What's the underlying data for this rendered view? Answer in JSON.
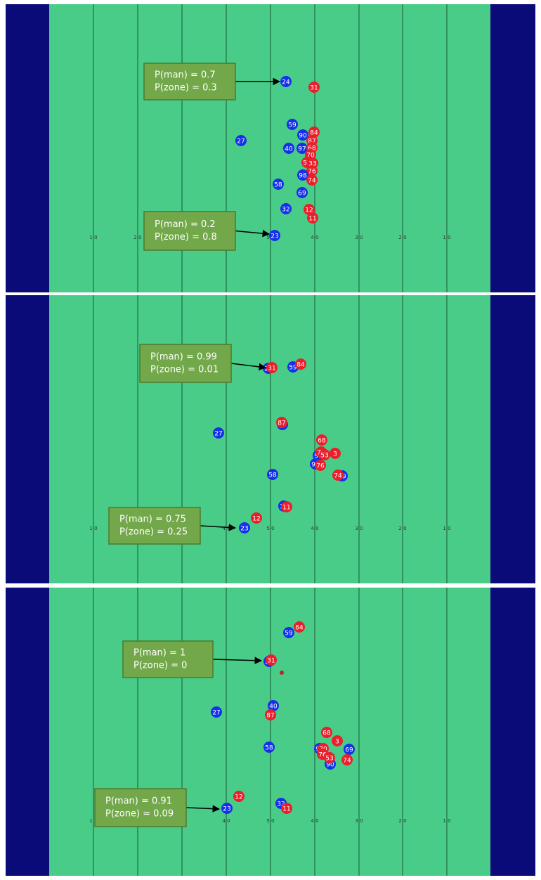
{
  "yard_labels": [
    "1 0",
    "2 0",
    "3 0",
    "4 0",
    "5 0",
    "4 0",
    "3 0",
    "2 0",
    "1 0"
  ],
  "panels": [
    {
      "annotations": [
        {
          "lines": [
            "P(man) = 0.7",
            "P(zone) = 0.3"
          ]
        },
        {
          "lines": [
            "P(man) = 0.2",
            "P(zone) = 0.8"
          ]
        }
      ],
      "players": [
        {
          "label": "24",
          "color": "blue"
        },
        {
          "label": "31",
          "color": "red"
        },
        {
          "label": "59",
          "color": "blue"
        },
        {
          "label": "90",
          "color": "blue"
        },
        {
          "label": "84",
          "color": "red"
        },
        {
          "label": "87",
          "color": "red"
        },
        {
          "label": "27",
          "color": "blue"
        },
        {
          "label": "40",
          "color": "blue"
        },
        {
          "label": "97",
          "color": "blue"
        },
        {
          "label": "68",
          "color": "red"
        },
        {
          "label": "70",
          "color": "red"
        },
        {
          "label": "53",
          "color": "red"
        },
        {
          "label": "33",
          "color": "red"
        },
        {
          "label": "76",
          "color": "red"
        },
        {
          "label": "98",
          "color": "blue"
        },
        {
          "label": "74",
          "color": "red"
        },
        {
          "label": "58",
          "color": "blue"
        },
        {
          "label": "69",
          "color": "blue"
        },
        {
          "label": "32",
          "color": "blue"
        },
        {
          "label": "12",
          "color": "red"
        },
        {
          "label": "11",
          "color": "red"
        },
        {
          "label": "23",
          "color": "blue"
        }
      ]
    },
    {
      "annotations": [
        {
          "lines": [
            "P(man) = 0.99",
            "P(zone) = 0.01"
          ]
        },
        {
          "lines": [
            "P(man) = 0.75",
            "P(zone) = 0.25"
          ]
        }
      ],
      "players": [
        {
          "label": "59",
          "color": "blue"
        },
        {
          "label": "84",
          "color": "red"
        },
        {
          "label": "24",
          "color": "blue"
        },
        {
          "label": "31",
          "color": "red"
        },
        {
          "label": "27",
          "color": "blue"
        },
        {
          "label": "40",
          "color": "blue"
        },
        {
          "label": "87",
          "color": "red"
        },
        {
          "label": "68",
          "color": "red"
        },
        {
          "label": "90",
          "color": "blue"
        },
        {
          "label": "70",
          "color": "red"
        },
        {
          "label": "53",
          "color": "red"
        },
        {
          "label": "3",
          "color": "red"
        },
        {
          "label": "97",
          "color": "blue"
        },
        {
          "label": "76",
          "color": "red"
        },
        {
          "label": "69",
          "color": "blue"
        },
        {
          "label": "74",
          "color": "red"
        },
        {
          "label": "58",
          "color": "blue"
        },
        {
          "label": "32",
          "color": "blue"
        },
        {
          "label": "11",
          "color": "red"
        },
        {
          "label": "12",
          "color": "red"
        },
        {
          "label": "23",
          "color": "blue"
        }
      ]
    },
    {
      "annotations": [
        {
          "lines": [
            "P(man) = 1",
            "P(zone) = 0"
          ]
        },
        {
          "lines": [
            "P(man) = 0.91",
            "P(zone) = 0.09"
          ]
        }
      ],
      "players": [
        {
          "label": "59",
          "color": "blue"
        },
        {
          "label": "84",
          "color": "red"
        },
        {
          "label": "24",
          "color": "blue"
        },
        {
          "label": "31",
          "color": "red"
        },
        {
          "label": "40",
          "color": "blue"
        },
        {
          "label": "87",
          "color": "red"
        },
        {
          "label": "27",
          "color": "blue"
        },
        {
          "label": "68",
          "color": "red"
        },
        {
          "label": "3",
          "color": "red"
        },
        {
          "label": "58",
          "color": "blue"
        },
        {
          "label": "97",
          "color": "blue"
        },
        {
          "label": "69",
          "color": "blue"
        },
        {
          "label": "90",
          "color": "blue"
        },
        {
          "label": "70",
          "color": "red"
        },
        {
          "label": "76",
          "color": "red"
        },
        {
          "label": "53",
          "color": "red"
        },
        {
          "label": "74",
          "color": "red"
        },
        {
          "label": "32",
          "color": "blue"
        },
        {
          "label": "11",
          "color": "red"
        },
        {
          "label": "12",
          "color": "red"
        },
        {
          "label": "23",
          "color": "blue"
        }
      ]
    }
  ]
}
